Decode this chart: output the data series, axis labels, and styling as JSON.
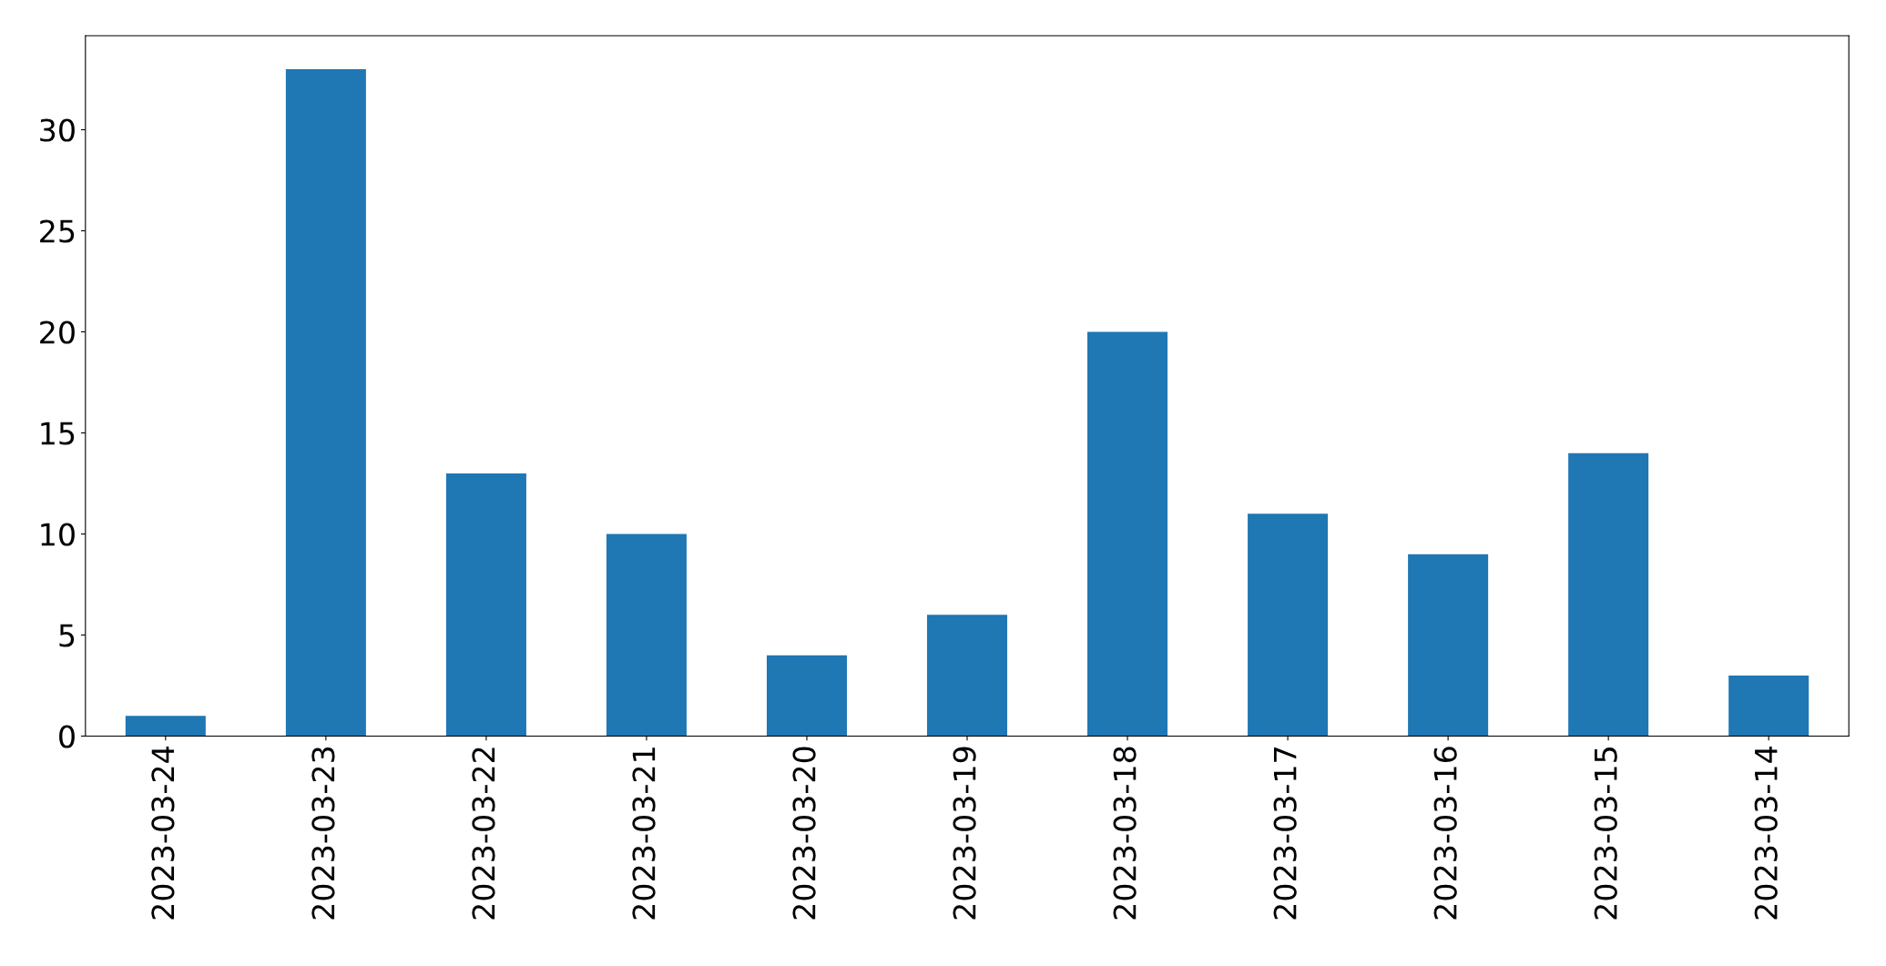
{
  "chart_data": {
    "type": "bar",
    "categories": [
      "2023-03-24",
      "2023-03-23",
      "2023-03-22",
      "2023-03-21",
      "2023-03-20",
      "2023-03-19",
      "2023-03-18",
      "2023-03-17",
      "2023-03-16",
      "2023-03-15",
      "2023-03-14"
    ],
    "values": [
      1,
      33,
      13,
      10,
      4,
      6,
      20,
      11,
      9,
      14,
      3
    ],
    "color": "#1f77b4",
    "ylim": [
      0,
      34.65
    ],
    "yticks": [
      0,
      5,
      10,
      15,
      20,
      25,
      30
    ],
    "grid": false,
    "legend": false
  }
}
